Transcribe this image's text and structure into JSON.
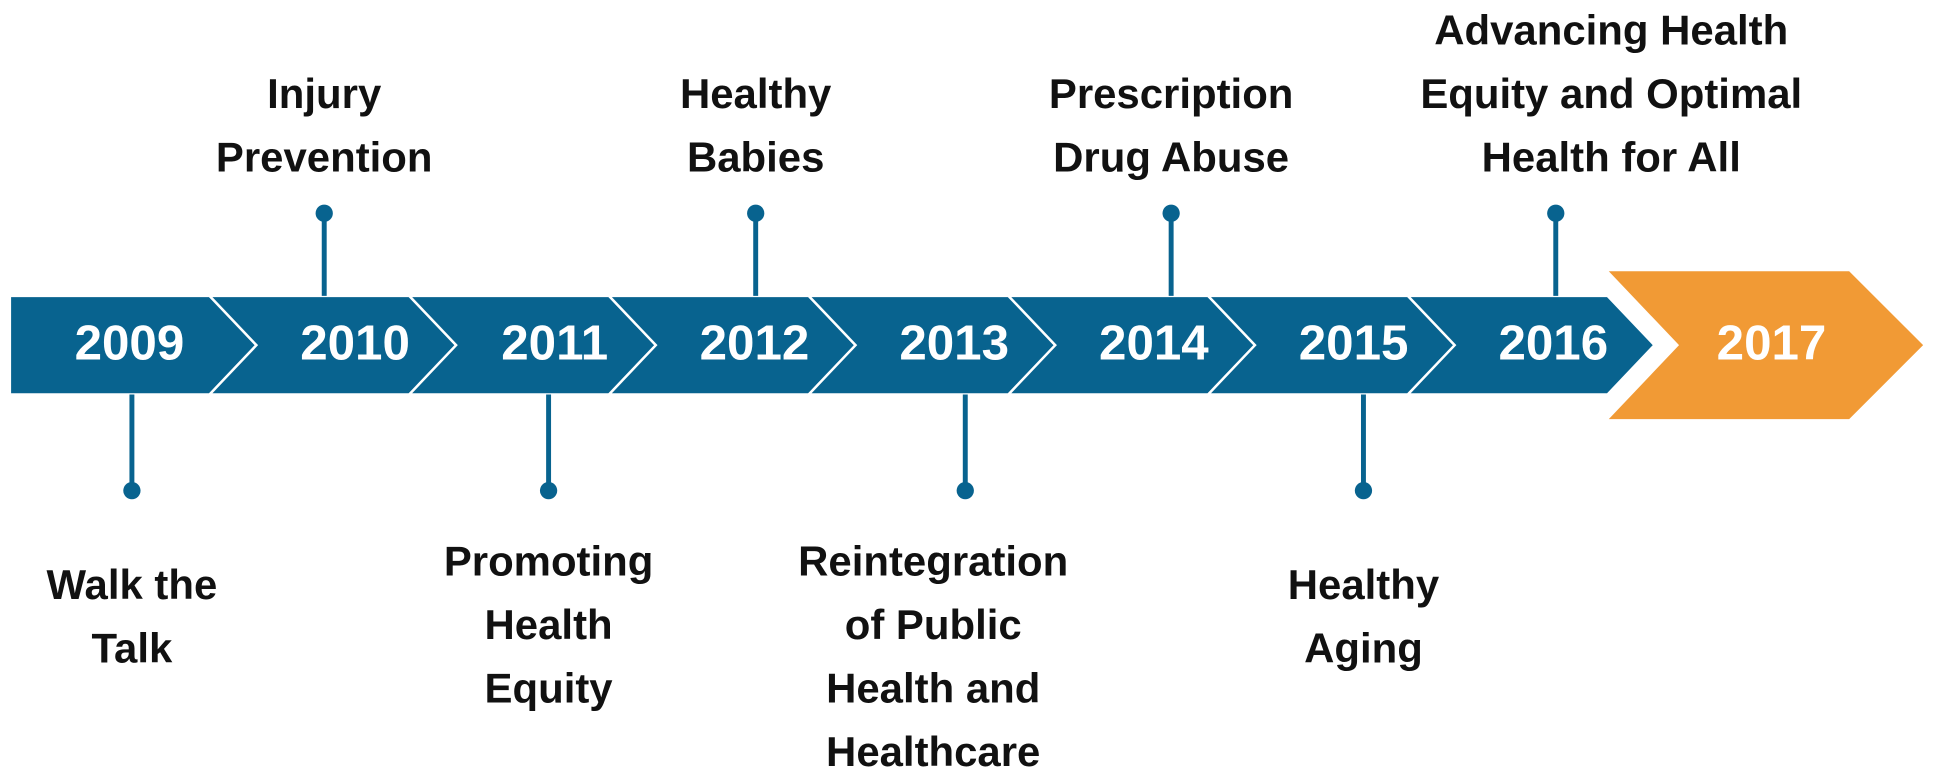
{
  "timeline": [
    {
      "year": "2009",
      "label": [
        "Walk the",
        "Talk"
      ]
    },
    {
      "year": "2010",
      "label": [
        "Injury",
        "Prevention"
      ]
    },
    {
      "year": "2011",
      "label": [
        "Promoting",
        "Health",
        "Equity"
      ]
    },
    {
      "year": "2012",
      "label": [
        "Healthy",
        "Babies"
      ]
    },
    {
      "year": "2013",
      "label": [
        "Reintegration",
        "of Public",
        "Health and",
        "Healthcare"
      ]
    },
    {
      "year": "2014",
      "label": [
        "Prescription",
        "Drug Abuse"
      ]
    },
    {
      "year": "2015",
      "label": [
        "Healthy",
        "Aging"
      ]
    },
    {
      "year": "2016",
      "label": [
        "Advancing Health",
        "Equity and Optimal",
        "Health for All"
      ]
    },
    {
      "year": "2017"
    }
  ]
}
